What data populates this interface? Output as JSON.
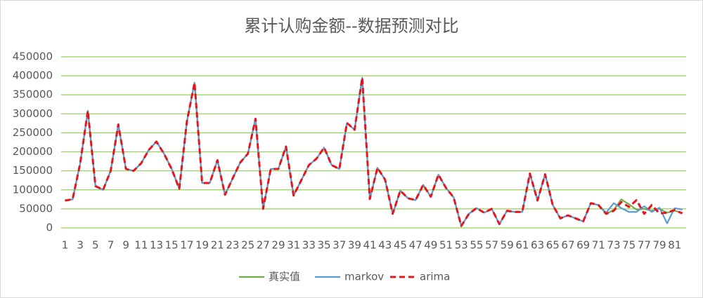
{
  "chart_data": {
    "type": "line",
    "title": "累计认购金额--数据预测对比",
    "categories": [
      1,
      null,
      3,
      null,
      5,
      null,
      7,
      null,
      9,
      null,
      11,
      null,
      13,
      null,
      15,
      null,
      17,
      null,
      19,
      null,
      21,
      null,
      23,
      null,
      25,
      null,
      27,
      null,
      29,
      null,
      31,
      null,
      33,
      null,
      35,
      null,
      37,
      null,
      39,
      null,
      41,
      null,
      43,
      null,
      45,
      null,
      47,
      null,
      49,
      null,
      51,
      null,
      53,
      null,
      55,
      null,
      57,
      null,
      59,
      null,
      61,
      null,
      63,
      null,
      65,
      null,
      67,
      null,
      69,
      null,
      71,
      null,
      73,
      null,
      75,
      null,
      77,
      null,
      79,
      null,
      81,
      null
    ],
    "series": [
      {
        "name": "真实值",
        "color": "#70ad47",
        "dashed": false,
        "values": [
          72000,
          75000,
          170000,
          308000,
          110000,
          100000,
          150000,
          272000,
          155000,
          150000,
          170000,
          205000,
          227000,
          195000,
          155000,
          103000,
          280000,
          382000,
          118000,
          118000,
          178000,
          87000,
          130000,
          172000,
          195000,
          287000,
          50000,
          155000,
          155000,
          214000,
          85000,
          125000,
          165000,
          182000,
          211000,
          165000,
          155000,
          276000,
          258000,
          395000,
          76000,
          158000,
          127000,
          37000,
          98000,
          78000,
          73000,
          113000,
          82000,
          140000,
          105000,
          80000,
          5000,
          37000,
          52000,
          40000,
          50000,
          10000,
          45000,
          42000,
          42000,
          143000,
          72000,
          141000,
          60000,
          25000,
          33000,
          25000,
          17000,
          65000,
          60000,
          37000,
          47000,
          75000,
          62000,
          48000,
          50000,
          45000,
          50000,
          40000,
          45000,
          40000
        ]
      },
      {
        "name": "markov",
        "color": "#5b9bd5",
        "dashed": false,
        "values": [
          72000,
          75000,
          170000,
          308000,
          110000,
          100000,
          150000,
          272000,
          155000,
          150000,
          170000,
          205000,
          227000,
          195000,
          155000,
          103000,
          280000,
          382000,
          118000,
          118000,
          178000,
          87000,
          130000,
          172000,
          195000,
          287000,
          50000,
          155000,
          155000,
          214000,
          85000,
          125000,
          165000,
          182000,
          211000,
          165000,
          155000,
          276000,
          258000,
          395000,
          76000,
          158000,
          127000,
          37000,
          98000,
          78000,
          73000,
          113000,
          82000,
          140000,
          105000,
          80000,
          5000,
          37000,
          52000,
          40000,
          50000,
          10000,
          45000,
          42000,
          42000,
          143000,
          72000,
          141000,
          60000,
          25000,
          33000,
          25000,
          17000,
          65000,
          60000,
          40000,
          65000,
          52000,
          42000,
          42000,
          57000,
          42000,
          53000,
          12000,
          52000,
          48000
        ]
      },
      {
        "name": "arima",
        "color": "#e8141c",
        "dashed": true,
        "values": [
          72000,
          75000,
          170000,
          308000,
          110000,
          100000,
          150000,
          272000,
          155000,
          150000,
          170000,
          205000,
          227000,
          195000,
          155000,
          103000,
          280000,
          382000,
          118000,
          118000,
          178000,
          87000,
          130000,
          172000,
          195000,
          287000,
          50000,
          155000,
          155000,
          214000,
          85000,
          125000,
          165000,
          182000,
          211000,
          165000,
          155000,
          276000,
          258000,
          395000,
          76000,
          158000,
          127000,
          37000,
          98000,
          78000,
          73000,
          113000,
          82000,
          140000,
          105000,
          80000,
          5000,
          37000,
          52000,
          40000,
          50000,
          10000,
          45000,
          42000,
          42000,
          143000,
          72000,
          141000,
          60000,
          25000,
          33000,
          25000,
          17000,
          65000,
          60000,
          37000,
          45000,
          68000,
          55000,
          73000,
          37000,
          60000,
          38000,
          40000,
          47000,
          38000
        ]
      }
    ],
    "ylim": [
      0,
      450000
    ],
    "yticks": [
      0,
      50000,
      100000,
      150000,
      200000,
      250000,
      300000,
      350000,
      400000,
      450000
    ],
    "grid": true,
    "grid_color": "#92d050",
    "legend": "bottom"
  }
}
